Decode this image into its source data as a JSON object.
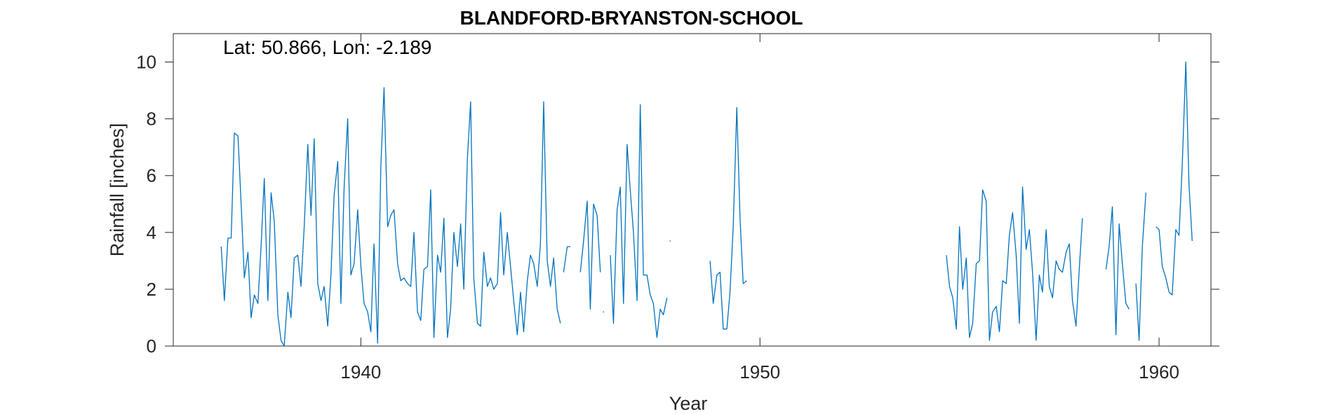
{
  "chart_data": {
    "type": "line",
    "title": "BLANDFORD-BRYANSTON-SCHOOL",
    "annotation": "Lat: 50.866, Lon: -2.189",
    "xlabel": "Year",
    "ylabel": "Rainfall [inches]",
    "xlim": [
      1935.3,
      1961.3
    ],
    "ylim": [
      0,
      11
    ],
    "xticks": [
      1940,
      1950,
      1960
    ],
    "yticks": [
      0,
      2,
      4,
      6,
      8,
      10
    ],
    "grid": false,
    "color": "#0072BD",
    "segments": [
      {
        "x": [
          1936.5,
          1936.58,
          1936.67,
          1936.75,
          1936.83,
          1936.92,
          1937.0,
          1937.08,
          1937.17,
          1937.25,
          1937.33,
          1937.42,
          1937.5,
          1937.58,
          1937.67,
          1937.75,
          1937.83,
          1937.92,
          1938.0,
          1938.08,
          1938.17,
          1938.25,
          1938.33,
          1938.42,
          1938.5,
          1938.58,
          1938.67,
          1938.75,
          1938.83,
          1938.92,
          1939.0,
          1939.08,
          1939.17,
          1939.25,
          1939.33,
          1939.42,
          1939.5,
          1939.58,
          1939.67,
          1939.75,
          1939.83,
          1939.92,
          1940.0,
          1940.08,
          1940.17,
          1940.25,
          1940.33,
          1940.42,
          1940.5,
          1940.58,
          1940.67,
          1940.75,
          1940.83,
          1940.92,
          1941.0,
          1941.08,
          1941.17,
          1941.25,
          1941.33,
          1941.42,
          1941.5,
          1941.58,
          1941.67,
          1941.75,
          1941.83,
          1941.92,
          1942.0,
          1942.08,
          1942.17,
          1942.25,
          1942.33,
          1942.42,
          1942.5,
          1942.58,
          1942.67,
          1942.75,
          1942.83,
          1942.92,
          1943.0,
          1943.08,
          1943.17,
          1943.25,
          1943.33,
          1943.42,
          1943.5,
          1943.58,
          1943.67,
          1943.75,
          1943.83,
          1943.92,
          1944.0,
          1944.08,
          1944.17,
          1944.25,
          1944.33,
          1944.42,
          1944.5,
          1944.58,
          1944.67,
          1944.75,
          1944.83,
          1944.92,
          1945.0
        ],
        "y": [
          3.5,
          1.6,
          3.8,
          3.8,
          7.5,
          7.4,
          5.0,
          2.4,
          3.3,
          1.0,
          1.8,
          1.5,
          3.5,
          5.9,
          1.6,
          5.4,
          4.4,
          1.1,
          0.2,
          0.0,
          1.9,
          1.0,
          3.1,
          3.2,
          2.1,
          4.2,
          7.1,
          4.6,
          7.3,
          2.2,
          1.6,
          2.1,
          0.7,
          2.5,
          5.3,
          6.5,
          1.5,
          5.6,
          8.0,
          2.5,
          2.9,
          4.8,
          2.8,
          1.5,
          1.2,
          0.5,
          3.6,
          0.1,
          6.3,
          9.1,
          4.2,
          4.6,
          4.8,
          2.9,
          2.3,
          2.4,
          2.2,
          2.1,
          4.0,
          1.2,
          0.9,
          2.7,
          2.8,
          5.5,
          0.3,
          3.2,
          2.6,
          4.5,
          0.3,
          1.3,
          4.0,
          2.8,
          4.3,
          2.0,
          6.6,
          8.6,
          2.4,
          0.8,
          0.7,
          3.3,
          2.1,
          2.4,
          2.0,
          2.2,
          4.7,
          2.5,
          4.0,
          2.8,
          1.6,
          0.4,
          1.9,
          0.5,
          2.3,
          3.2,
          2.9,
          2.1,
          3.6,
          8.6,
          3.0,
          2.1,
          3.1,
          1.3,
          0.8
        ]
      },
      {
        "x": [
          1945.08,
          1945.17,
          1945.25
        ],
        "y": [
          2.6,
          3.5,
          3.5
        ]
      },
      {
        "x": [
          1945.5,
          1945.58,
          1945.67,
          1945.75,
          1945.83,
          1945.92,
          1946.0
        ],
        "y": [
          2.6,
          3.7,
          5.1,
          1.3,
          5.0,
          4.6,
          2.6
        ]
      },
      {
        "x": [
          1946.08
        ],
        "y": [
          1.2
        ]
      },
      {
        "x": [
          1946.25,
          1946.33,
          1946.42,
          1946.5,
          1946.58,
          1946.67,
          1946.75,
          1946.83,
          1946.92,
          1947.0,
          1947.08,
          1947.17,
          1947.25,
          1947.33,
          1947.42,
          1947.5,
          1947.58,
          1947.67
        ],
        "y": [
          3.2,
          0.8,
          4.8,
          5.6,
          1.5,
          7.1,
          5.5,
          4.0,
          1.6,
          8.5,
          2.5,
          2.5,
          1.8,
          1.5,
          0.3,
          1.3,
          1.1,
          1.7
        ]
      },
      {
        "x": [
          1947.75
        ],
        "y": [
          3.7
        ]
      },
      {
        "x": [
          1948.75,
          1948.83,
          1948.92,
          1949.0,
          1949.08,
          1949.17,
          1949.25,
          1949.33,
          1949.42,
          1949.5,
          1949.58,
          1949.67
        ],
        "y": [
          3.0,
          1.5,
          2.5,
          2.6,
          0.6,
          0.6,
          1.9,
          4.2,
          8.4,
          4.5,
          2.2,
          2.3
        ]
      },
      {
        "x": [
          1954.67,
          1954.75,
          1954.83,
          1954.92,
          1955.0,
          1955.08,
          1955.17,
          1955.25,
          1955.33,
          1955.42,
          1955.5,
          1955.58,
          1955.67,
          1955.75,
          1955.83,
          1955.92,
          1956.0,
          1956.08,
          1956.17,
          1956.25,
          1956.33,
          1956.42,
          1956.5,
          1956.58,
          1956.67,
          1956.75,
          1956.83,
          1956.92,
          1957.0,
          1957.08,
          1957.17,
          1957.25,
          1957.33,
          1957.42,
          1957.5,
          1957.58,
          1957.67,
          1957.75,
          1957.83,
          1957.92,
          1958.0,
          1958.08,
          1958.17,
          1958.25,
          1958.33,
          1958.42
        ],
        "y": [
          3.2,
          2.1,
          1.7,
          0.6,
          4.2,
          2.0,
          3.1,
          0.3,
          0.8,
          2.9,
          3.0,
          5.5,
          5.1,
          0.2,
          1.2,
          1.4,
          0.5,
          2.3,
          2.2,
          3.9,
          4.7,
          3.2,
          0.8,
          5.6,
          3.4,
          4.1,
          2.6,
          0.2,
          2.5,
          1.9,
          4.1,
          2.1,
          1.7,
          3.0,
          2.7,
          2.6,
          3.3,
          3.6,
          1.6,
          0.7,
          2.7,
          4.5,
          null,
          null,
          null,
          null
        ]
      },
      {
        "x": [
          1958.67,
          1958.75,
          1958.83,
          1958.92,
          1959.0,
          1959.08,
          1959.17,
          1959.25
        ],
        "y": [
          2.7,
          3.5,
          4.9,
          0.4,
          4.3,
          2.9,
          1.5,
          1.3
        ]
      },
      {
        "x": [
          1959.42,
          1959.5,
          1959.58,
          1959.67
        ],
        "y": [
          2.2,
          0.2,
          3.5,
          5.4
        ]
      },
      {
        "x": [
          1959.92,
          1960.0,
          1960.08,
          1960.17,
          1960.25,
          1960.33,
          1960.42,
          1960.5,
          1960.58,
          1960.67,
          1960.75,
          1960.83,
          1960.92
        ],
        "y": [
          4.2,
          4.1,
          2.8,
          2.4,
          1.9,
          1.8,
          4.1,
          3.9,
          6.3,
          10.0,
          5.7,
          3.7,
          null
        ]
      }
    ]
  }
}
